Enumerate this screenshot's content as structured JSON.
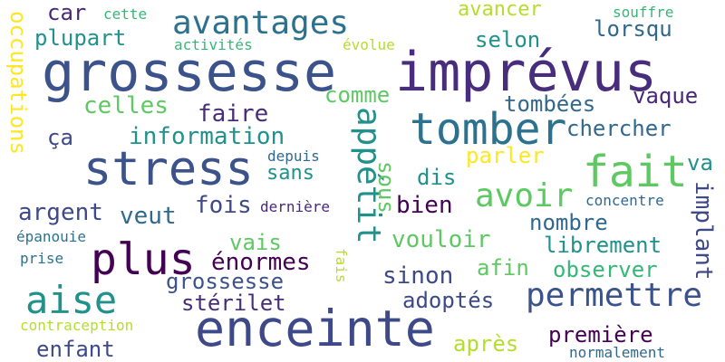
{
  "words": [
    {
      "text": "grossesse",
      "color": "#3b528b"
    },
    {
      "text": "imprévus",
      "color": "#472d7b"
    },
    {
      "text": "enceinte",
      "color": "#3e4989"
    },
    {
      "text": "stress",
      "color": "#3b528b"
    },
    {
      "text": "tomber",
      "color": "#2c728e"
    },
    {
      "text": "fait",
      "color": "#5ec962"
    },
    {
      "text": "plus",
      "color": "#440154"
    },
    {
      "text": "aise",
      "color": "#21918c"
    },
    {
      "text": "avantages",
      "color": "#2c728e"
    },
    {
      "text": "permettre",
      "color": "#3b528b"
    },
    {
      "text": "avoir",
      "color": "#5ec962"
    },
    {
      "text": "appétit",
      "color": "#21918c"
    },
    {
      "text": "occupations",
      "color": "#fde725"
    },
    {
      "text": "plupart",
      "color": "#21918c"
    },
    {
      "text": "car",
      "color": "#482878"
    },
    {
      "text": "cette",
      "color": "#35b779"
    },
    {
      "text": "activités",
      "color": "#35b779"
    },
    {
      "text": "évolue",
      "color": "#b5de2b"
    },
    {
      "text": "avancer",
      "color": "#b5de2b"
    },
    {
      "text": "souffre",
      "color": "#35b779"
    },
    {
      "text": "selon",
      "color": "#21918c"
    },
    {
      "text": "lorsqu",
      "color": "#31688e"
    },
    {
      "text": "celles",
      "color": "#5ec962"
    },
    {
      "text": "comme",
      "color": "#5ec962"
    },
    {
      "text": "faire",
      "color": "#472d7b"
    },
    {
      "text": "tombées",
      "color": "#31688e"
    },
    {
      "text": "vaque",
      "color": "#482878"
    },
    {
      "text": "chercher",
      "color": "#31688e"
    },
    {
      "text": "information",
      "color": "#21918c"
    },
    {
      "text": "ça",
      "color": "#3e4989"
    },
    {
      "text": "depuis",
      "color": "#31688e"
    },
    {
      "text": "sans",
      "color": "#21918c"
    },
    {
      "text": "parler",
      "color": "#fde725"
    },
    {
      "text": "sous",
      "color": "#5ec962"
    },
    {
      "text": "dis",
      "color": "#21918c"
    },
    {
      "text": "va",
      "color": "#21918c"
    },
    {
      "text": "implant",
      "color": "#3e4989"
    },
    {
      "text": "argent",
      "color": "#3e4989"
    },
    {
      "text": "veut",
      "color": "#31688e"
    },
    {
      "text": "fois",
      "color": "#3e4989"
    },
    {
      "text": "dernière",
      "color": "#482878"
    },
    {
      "text": "bien",
      "color": "#440154"
    },
    {
      "text": "concentre",
      "color": "#31688e"
    },
    {
      "text": "nombre",
      "color": "#31688e"
    },
    {
      "text": "épanouie",
      "color": "#2c728e"
    },
    {
      "text": "vais",
      "color": "#5ec962"
    },
    {
      "text": "vouloir",
      "color": "#5ec962"
    },
    {
      "text": "librement",
      "color": "#21918c"
    },
    {
      "text": "prise",
      "color": "#2c728e"
    },
    {
      "text": "énormes",
      "color": "#440154"
    },
    {
      "text": "fais",
      "color": "#b5de2b"
    },
    {
      "text": "afin",
      "color": "#5ec962"
    },
    {
      "text": "observer",
      "color": "#35b779"
    },
    {
      "text": "sinon",
      "color": "#3e4989"
    },
    {
      "text": "stérilet",
      "color": "#472d7b"
    },
    {
      "text": "adoptés",
      "color": "#3e4989"
    },
    {
      "text": "contraception",
      "color": "#b5de2b"
    },
    {
      "text": "première",
      "color": "#440154"
    },
    {
      "text": "enfant",
      "color": "#3e4989"
    },
    {
      "text": "après",
      "color": "#b5de2b"
    },
    {
      "text": "normalement",
      "color": "#31688e"
    }
  ]
}
